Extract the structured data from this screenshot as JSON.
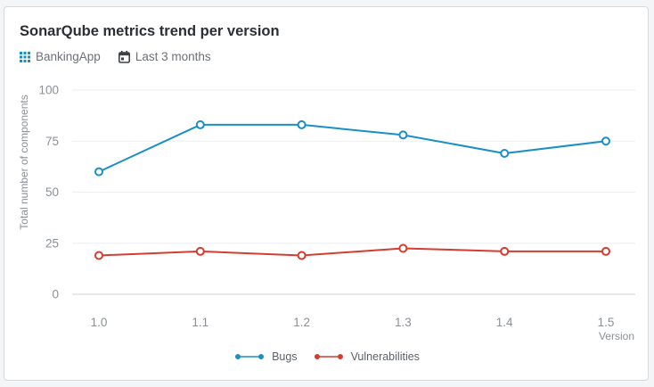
{
  "card": {
    "title": "SonarQube metrics trend per version",
    "meta": {
      "project_icon": "grid-icon",
      "project": "BankingApp",
      "period_icon": "calendar-icon",
      "period": "Last 3 months"
    }
  },
  "chart_data": {
    "type": "line",
    "title": "SonarQube metrics trend per version",
    "xlabel": "Version",
    "ylabel": "Total number of components",
    "categories": [
      "1.0",
      "1.1",
      "1.2",
      "1.3",
      "1.4",
      "1.5"
    ],
    "ylim": [
      0,
      100
    ],
    "yticks": [
      0,
      25,
      50,
      75,
      100
    ],
    "grid": true,
    "legend": "bottom-center",
    "series": [
      {
        "name": "Bugs",
        "color": "#1a8fc7",
        "values": [
          60,
          83,
          83,
          78,
          69,
          75
        ]
      },
      {
        "name": "Vulnerabilities",
        "color": "#d43d2f",
        "values": [
          19,
          21,
          19,
          22.5,
          21,
          21
        ]
      }
    ]
  }
}
